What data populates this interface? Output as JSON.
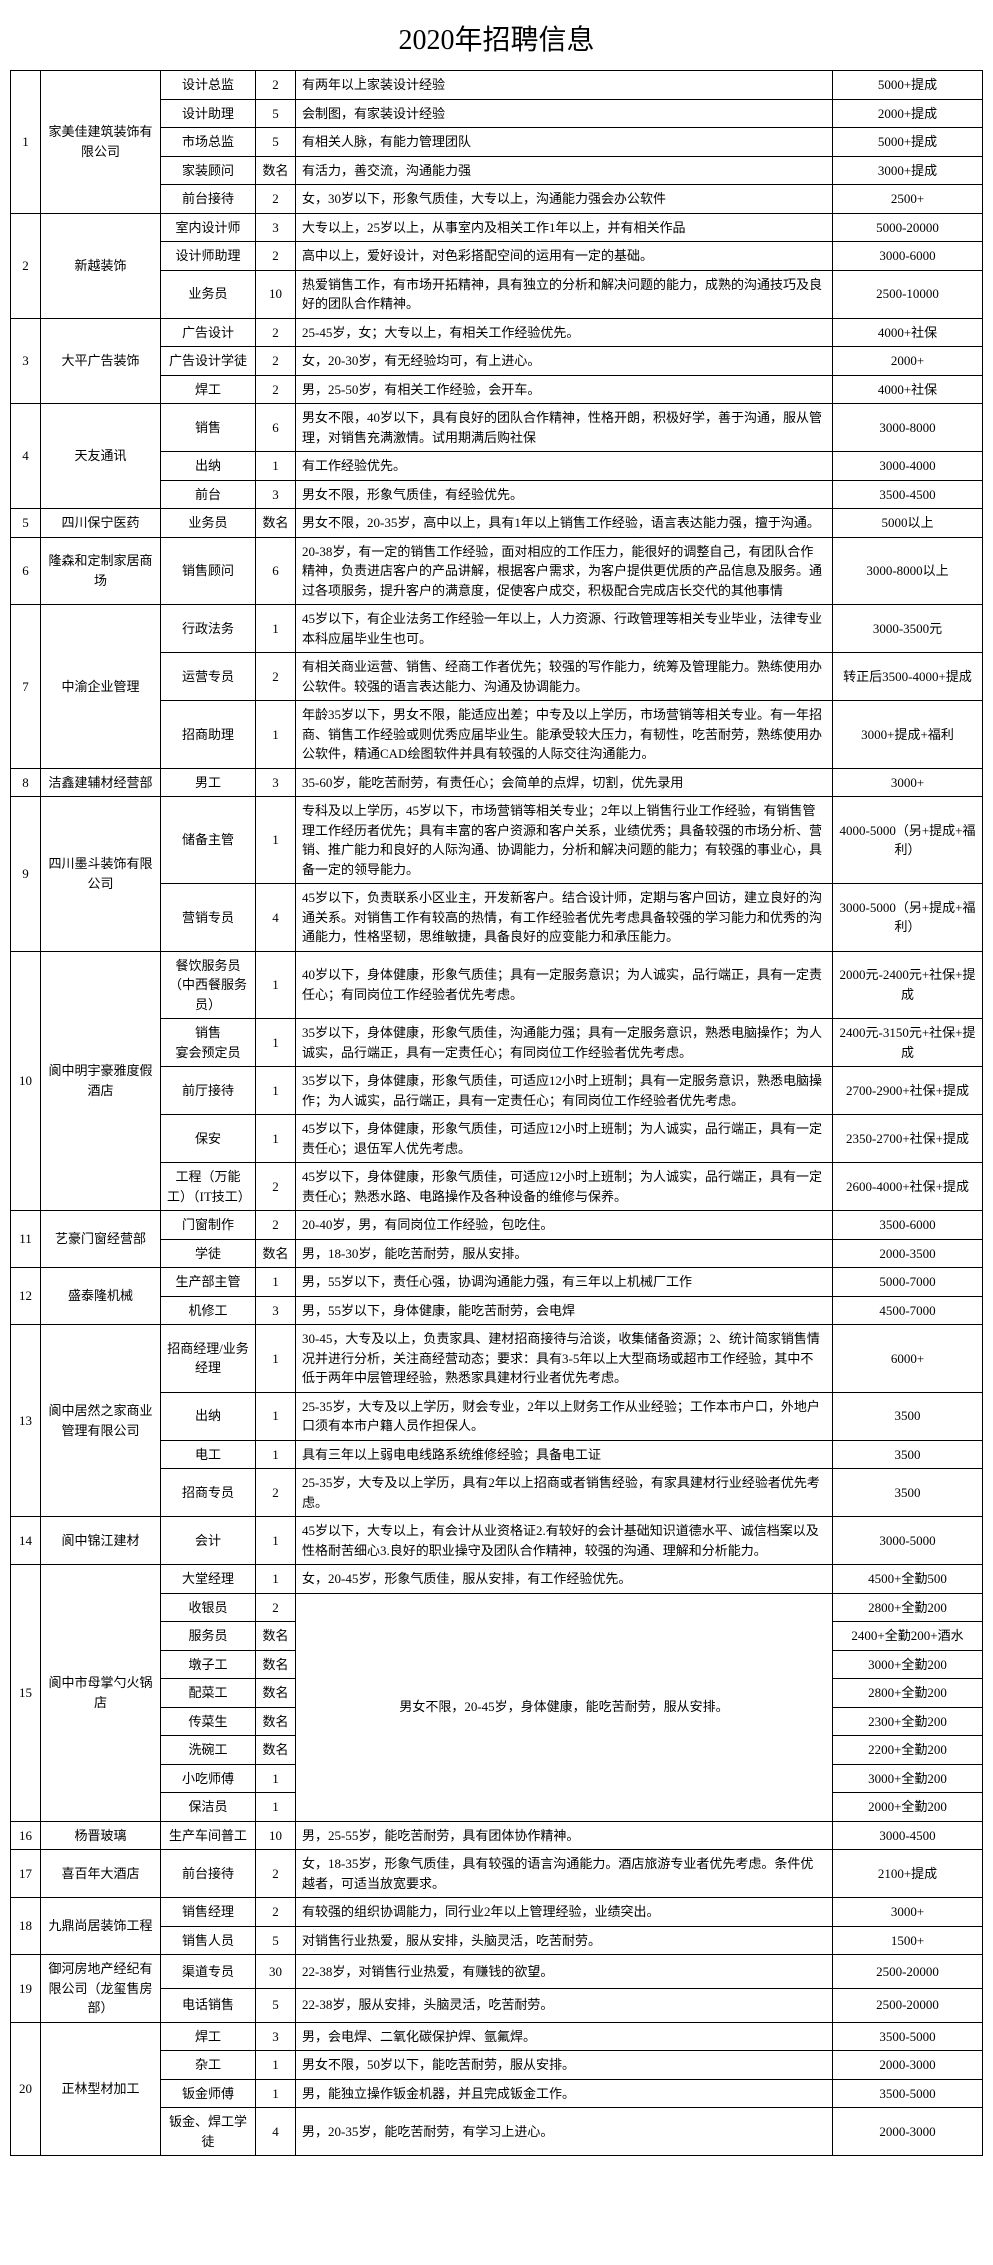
{
  "title": "2020年招聘信息",
  "colors": {
    "border": "#000000",
    "text": "#000000",
    "bg": "#ffffff"
  },
  "companies": [
    {
      "index": "1",
      "name": "家美佳建筑装饰有限公司",
      "jobs": [
        {
          "position": "设计总监",
          "count": "2",
          "req": "有两年以上家装设计经验",
          "salary": "5000+提成"
        },
        {
          "position": "设计助理",
          "count": "5",
          "req": "会制图，有家装设计经验",
          "salary": "2000+提成"
        },
        {
          "position": "市场总监",
          "count": "5",
          "req": "有相关人脉，有能力管理团队",
          "salary": "5000+提成"
        },
        {
          "position": "家装顾问",
          "count": "数名",
          "req": "有活力，善交流，沟通能力强",
          "salary": "3000+提成"
        },
        {
          "position": "前台接待",
          "count": "2",
          "req": "女，30岁以下，形象气质佳，大专以上，沟通能力强会办公软件",
          "salary": "2500+"
        }
      ]
    },
    {
      "index": "2",
      "name": "新越装饰",
      "jobs": [
        {
          "position": "室内设计师",
          "count": "3",
          "req": "大专以上，25岁以上，从事室内及相关工作1年以上，并有相关作品",
          "salary": "5000-20000"
        },
        {
          "position": "设计师助理",
          "count": "2",
          "req": "高中以上，爱好设计，对色彩搭配空间的运用有一定的基础。",
          "salary": "3000-6000"
        },
        {
          "position": "业务员",
          "count": "10",
          "req": "热爱销售工作，有市场开拓精神，具有独立的分析和解决问题的能力，成熟的沟通技巧及良好的团队合作精神。",
          "salary": "2500-10000"
        }
      ]
    },
    {
      "index": "3",
      "name": "大平广告装饰",
      "jobs": [
        {
          "position": "广告设计",
          "count": "2",
          "req": "25-45岁，女；大专以上，有相关工作经验优先。",
          "salary": "4000+社保"
        },
        {
          "position": "广告设计学徒",
          "count": "2",
          "req": "女，20-30岁，有无经验均可，有上进心。",
          "salary": "2000+"
        },
        {
          "position": "焊工",
          "count": "2",
          "req": "男，25-50岁，有相关工作经验，会开车。",
          "salary": "4000+社保"
        }
      ]
    },
    {
      "index": "4",
      "name": "天友通讯",
      "jobs": [
        {
          "position": "销售",
          "count": "6",
          "req": "男女不限，40岁以下，具有良好的团队合作精神，性格开朗，积极好学，善于沟通，服从管理，对销售充满激情。试用期满后购社保",
          "salary": "3000-8000"
        },
        {
          "position": "出纳",
          "count": "1",
          "req": "有工作经验优先。",
          "salary": "3000-4000"
        },
        {
          "position": "前台",
          "count": "3",
          "req": "男女不限，形象气质佳，有经验优先。",
          "salary": "3500-4500"
        }
      ]
    },
    {
      "index": "5",
      "name": "四川保宁医药",
      "jobs": [
        {
          "position": "业务员",
          "count": "数名",
          "req": "男女不限，20-35岁，高中以上，具有1年以上销售工作经验，语言表达能力强，擅于沟通。",
          "salary": "5000以上"
        }
      ]
    },
    {
      "index": "6",
      "name": "隆森和定制家居商场",
      "jobs": [
        {
          "position": "销售顾问",
          "count": "6",
          "req": "20-38岁，有一定的销售工作经验，面对相应的工作压力，能很好的调整自己，有团队合作精神，负责进店客户的产品讲解，根据客户需求，为客户提供更优质的产品信息及服务。通过各项服务，提升客户的满意度，促使客户成交，积极配合完成店长交代的其他事情",
          "salary": "3000-8000以上"
        }
      ]
    },
    {
      "index": "7",
      "name": "中渝企业管理",
      "jobs": [
        {
          "position": "行政法务",
          "count": "1",
          "req": "45岁以下，有企业法务工作经验一年以上，人力资源、行政管理等相关专业毕业，法律专业本科应届毕业生也可。",
          "salary": "3000-3500元"
        },
        {
          "position": "运营专员",
          "count": "2",
          "req": "有相关商业运营、销售、经商工作者优先；较强的写作能力，统筹及管理能力。熟练使用办公软件。较强的语言表达能力、沟通及协调能力。",
          "salary": "转正后3500-4000+提成"
        },
        {
          "position": "招商助理",
          "count": "1",
          "req": "年龄35岁以下，男女不限，能适应出差；中专及以上学历，市场营销等相关专业。有一年招商、销售工作经验或则优秀应届毕业生。能承受较大压力，有韧性，吃苦耐劳，熟练使用办公软件，精通CAD绘图软件并具有较强的人际交往沟通能力。",
          "salary": "3000+提成+福利"
        }
      ]
    },
    {
      "index": "8",
      "name": "洁鑫建辅材经营部",
      "jobs": [
        {
          "position": "男工",
          "count": "3",
          "req": "35-60岁，能吃苦耐劳，有责任心；会简单的点焊，切割，优先录用",
          "salary": "3000+"
        }
      ]
    },
    {
      "index": "9",
      "name": "四川墨斗装饰有限公司",
      "jobs": [
        {
          "position": "储备主管",
          "count": "1",
          "req": "专科及以上学历，45岁以下，市场营销等相关专业；2年以上销售行业工作经验，有销售管理工作经历者优先；具有丰富的客户资源和客户关系，业绩优秀；具备较强的市场分析、营销、推广能力和良好的人际沟通、协调能力，分析和解决问题的能力；有较强的事业心，具备一定的领导能力。",
          "salary": "4000-5000（另+提成+福利）"
        },
        {
          "position": "营销专员",
          "count": "4",
          "req": "45岁以下，负责联系小区业主，开发新客户。结合设计师，定期与客户回访，建立良好的沟通关系。对销售工作有较高的热情，有工作经验者优先考虑具备较强的学习能力和优秀的沟通能力，性格坚韧，思维敏捷，具备良好的应变能力和承压能力。",
          "salary": "3000-5000（另+提成+福利）"
        }
      ]
    },
    {
      "index": "10",
      "name": "阆中明宇豪雅度假酒店",
      "jobs": [
        {
          "position": "餐饮服务员（中西餐服务员）",
          "count": "1",
          "req": "40岁以下，身体健康，形象气质佳；具有一定服务意识；为人诚实，品行端正，具有一定责任心；有同岗位工作经验者优先考虑。",
          "salary": "2000元-2400元+社保+提成"
        },
        {
          "position": "销售\n宴会预定员",
          "count": "1",
          "req": "35岁以下，身体健康，形象气质佳，沟通能力强；具有一定服务意识，熟悉电脑操作；为人诚实，品行端正，具有一定责任心；有同岗位工作经验者优先考虑。",
          "salary": "2400元-3150元+社保+提成"
        },
        {
          "position": "前厅接待",
          "count": "1",
          "req": "35岁以下，身体健康，形象气质佳，可适应12小时上班制；具有一定服务意识，熟悉电脑操作；为人诚实，品行端正，具有一定责任心；有同岗位工作经验者优先考虑。",
          "salary": "2700-2900+社保+提成"
        },
        {
          "position": "保安",
          "count": "1",
          "req": "45岁以下，身体健康，形象气质佳，可适应12小时上班制；为人诚实，品行端正，具有一定责任心；退伍军人优先考虑。",
          "salary": "2350-2700+社保+提成"
        },
        {
          "position": "工程（万能工）（IT技工）",
          "count": "2",
          "req": "45岁以下，身体健康，形象气质佳，可适应12小时上班制；为人诚实，品行端正，具有一定责任心；熟悉水路、电路操作及各种设备的维修与保养。",
          "salary": "2600-4000+社保+提成"
        }
      ]
    },
    {
      "index": "11",
      "name": "艺豪门窗经营部",
      "jobs": [
        {
          "position": "门窗制作",
          "count": "2",
          "req": "20-40岁，男，有同岗位工作经验，包吃住。",
          "salary": "3500-6000"
        },
        {
          "position": "学徒",
          "count": "数名",
          "req": "男，18-30岁，能吃苦耐劳，服从安排。",
          "salary": "2000-3500"
        }
      ]
    },
    {
      "index": "12",
      "name": "盛泰隆机械",
      "jobs": [
        {
          "position": "生产部主管",
          "count": "1",
          "req": "男，55岁以下，责任心强，协调沟通能力强，有三年以上机械厂工作",
          "salary": "5000-7000"
        },
        {
          "position": "机修工",
          "count": "3",
          "req": "男，55岁以下，身体健康，能吃苦耐劳，会电焊",
          "salary": "4500-7000"
        }
      ]
    },
    {
      "index": "13",
      "name": "阆中居然之家商业管理有限公司",
      "jobs": [
        {
          "position": "招商经理/业务经理",
          "count": "1",
          "req": "30-45，大专及以上，负责家具、建材招商接待与洽谈，收集储备资源；2、统计简家销售情况并进行分析，关注商经营动态；要求：具有3-5年以上大型商场或超市工作经验，其中不低于两年中层管理经验，熟悉家具建材行业者优先考虑。",
          "salary": "6000+"
        },
        {
          "position": "出纳",
          "count": "1",
          "req": "25-35岁，大专及以上学历，财会专业，2年以上财务工作从业经验；工作本市户口，外地户口须有本市户籍人员作担保人。",
          "salary": "3500"
        },
        {
          "position": "电工",
          "count": "1",
          "req": "具有三年以上弱电电线路系统维修经验；具备电工证",
          "salary": "3500"
        },
        {
          "position": "招商专员",
          "count": "2",
          "req": "25-35岁，大专及以上学历，具有2年以上招商或者销售经验，有家具建材行业经验者优先考虑。",
          "salary": "3500"
        }
      ]
    },
    {
      "index": "14",
      "name": "阆中锦江建材",
      "jobs": [
        {
          "position": "会计",
          "count": "1",
          "req": "45岁以下，大专以上，有会计从业资格证2.有较好的会计基础知识道德水平、诚信档案以及性格耐苦细心3.良好的职业操守及团队合作精神，较强的沟通、理解和分析能力。",
          "salary": "3000-5000"
        }
      ]
    },
    {
      "index": "15",
      "name": "阆中市母掌勺火锅店",
      "jobs": [
        {
          "position": "大堂经理",
          "count": "1",
          "req": "女，20-45岁，形象气质佳，服从安排，有工作经验优先。",
          "salary": "4500+全勤500"
        },
        {
          "position": "收银员",
          "count": "2",
          "req": "",
          "salary": "2800+全勤200",
          "shared_req": true
        },
        {
          "position": "服务员",
          "count": "数名",
          "req": "",
          "salary": "2400+全勤200+酒水",
          "shared_req": true
        },
        {
          "position": "墩子工",
          "count": "数名",
          "req": "",
          "salary": "3000+全勤200",
          "shared_req": true
        },
        {
          "position": "配菜工",
          "count": "数名",
          "req": "",
          "salary": "2800+全勤200",
          "shared_req": true
        },
        {
          "position": "传菜生",
          "count": "数名",
          "req": "",
          "salary": "2300+全勤200",
          "shared_req": true
        },
        {
          "position": "洗碗工",
          "count": "数名",
          "req": "",
          "salary": "2200+全勤200",
          "shared_req": true
        },
        {
          "position": "小吃师傅",
          "count": "1",
          "req": "",
          "salary": "3000+全勤200",
          "shared_req": true
        },
        {
          "position": "保洁员",
          "count": "1",
          "req": "",
          "salary": "2000+全勤200",
          "shared_req": true
        }
      ],
      "shared_req_text": "男女不限，20-45岁，身体健康，能吃苦耐劳，服从安排。"
    },
    {
      "index": "16",
      "name": "杨晋玻璃",
      "jobs": [
        {
          "position": "生产车间普工",
          "count": "10",
          "req": "男，25-55岁，能吃苦耐劳，具有团体协作精神。",
          "salary": "3000-4500"
        }
      ]
    },
    {
      "index": "17",
      "name": "喜百年大酒店",
      "jobs": [
        {
          "position": "前台接待",
          "count": "2",
          "req": "女，18-35岁，形象气质佳，具有较强的语言沟通能力。酒店旅游专业者优先考虑。条件优越者，可适当放宽要求。",
          "salary": "2100+提成"
        }
      ]
    },
    {
      "index": "18",
      "name": "九鼎尚居装饰工程",
      "jobs": [
        {
          "position": "销售经理",
          "count": "2",
          "req": "有较强的组织协调能力，同行业2年以上管理经验，业绩突出。",
          "salary": "3000+"
        },
        {
          "position": "销售人员",
          "count": "5",
          "req": "对销售行业热爱，服从安排，头脑灵活，吃苦耐劳。",
          "salary": "1500+"
        }
      ]
    },
    {
      "index": "19",
      "name": "御河房地产经纪有限公司（龙玺售房部）",
      "jobs": [
        {
          "position": "渠道专员",
          "count": "30",
          "req": "22-38岁，对销售行业热爱，有赚钱的欲望。",
          "salary": "2500-20000"
        },
        {
          "position": "电话销售",
          "count": "5",
          "req": "22-38岁，服从安排，头脑灵活，吃苦耐劳。",
          "salary": "2500-20000"
        }
      ]
    },
    {
      "index": "20",
      "name": "正林型材加工",
      "jobs": [
        {
          "position": "焊工",
          "count": "3",
          "req": "男，会电焊、二氧化碳保护焊、氩氟焊。",
          "salary": "3500-5000"
        },
        {
          "position": "杂工",
          "count": "1",
          "req": "男女不限，50岁以下，能吃苦耐劳，服从安排。",
          "salary": "2000-3000"
        },
        {
          "position": "钣金师傅",
          "count": "1",
          "req": "男，能独立操作钣金机器，并且完成钣金工作。",
          "salary": "3500-5000"
        },
        {
          "position": "钣金、焊工学徒",
          "count": "4",
          "req": "男，20-35岁，能吃苦耐劳，有学习上进心。",
          "salary": "2000-3000"
        }
      ]
    }
  ]
}
